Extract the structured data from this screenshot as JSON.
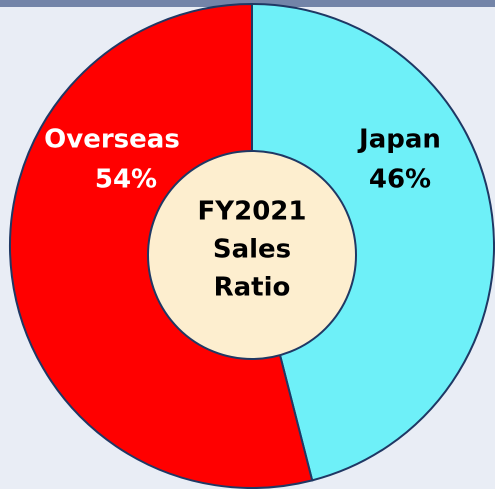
{
  "chart_data": {
    "type": "donut",
    "title_lines": [
      "FY2021",
      "Sales",
      "Ratio"
    ],
    "categories": [
      "Japan",
      "Overseas"
    ],
    "values": [
      46,
      54
    ],
    "value_labels": [
      "46%",
      "54%"
    ],
    "colors": [
      "#6ef0f8",
      "#ff0000"
    ],
    "label_colors": [
      "#000000",
      "#ffffff"
    ]
  }
}
